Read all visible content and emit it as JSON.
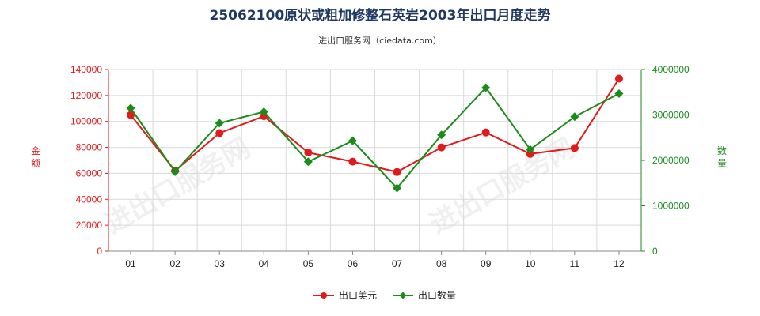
{
  "chart_data": {
    "type": "line",
    "title": "25062100原状或粗加修整石英岩2003年出口月度走势",
    "subtitle": "进出口服务网（ciedata.com）",
    "categories": [
      "01",
      "02",
      "03",
      "04",
      "05",
      "06",
      "07",
      "08",
      "09",
      "10",
      "11",
      "12"
    ],
    "y_left": {
      "label": "金额",
      "range": [
        0,
        140000
      ],
      "ticks": [
        0,
        20000,
        40000,
        60000,
        80000,
        100000,
        120000,
        140000
      ],
      "color": "#e31a1c"
    },
    "y_right": {
      "label": "数量",
      "range": [
        0,
        4000000
      ],
      "ticks": [
        0,
        1000000,
        2000000,
        3000000,
        4000000
      ],
      "color": "#1a8c1a"
    },
    "series": [
      {
        "name": "出口美元",
        "axis": "left",
        "color": "#e31a1c",
        "values": [
          105000,
          62000,
          91000,
          104000,
          76000,
          69000,
          61000,
          80000,
          91500,
          75000,
          79500,
          133000
        ]
      },
      {
        "name": "出口数量",
        "axis": "right",
        "color": "#1a8c1a",
        "values": [
          3150000,
          1750000,
          2820000,
          3070000,
          1970000,
          2430000,
          1390000,
          2560000,
          3600000,
          2240000,
          2960000,
          3470000
        ]
      }
    ],
    "grid": true,
    "legend_position": "bottom",
    "watermark": "进出口服务网"
  }
}
